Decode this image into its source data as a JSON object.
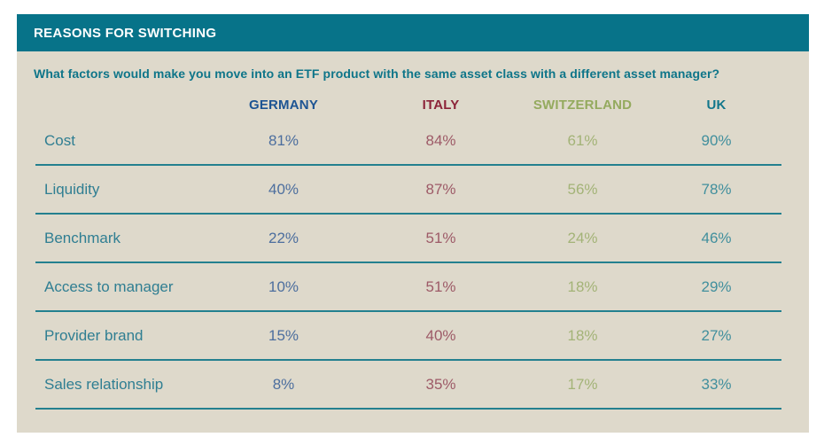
{
  "colors": {
    "page_bg": "#ffffff",
    "panel_bg": "#ded9cb",
    "title_bar_bg": "#077389",
    "title_text": "#ffffff",
    "question_text": "#0e7589",
    "row_label_text": "#2f7e92",
    "row_rule": "#23808f",
    "germany_header": "#1d5493",
    "germany_value": "#4c6e9e",
    "italy_header": "#8c2339",
    "italy_value": "#9d5a67",
    "switzerland_header": "#94aa5e",
    "switzerland_value": "#a3b377",
    "uk_header": "#11768b",
    "uk_value": "#418f9d"
  },
  "chart_data": {
    "type": "table",
    "title": "REASONS FOR SWITCHING",
    "question": "What factors would make you move into an ETF product with the same asset class with a different asset manager?",
    "columns": [
      "GERMANY",
      "ITALY",
      "SWITZERLAND",
      "UK"
    ],
    "values_unit": "%",
    "rows": [
      {
        "label": "Cost",
        "values": [
          "81%",
          "84%",
          "61%",
          "90%"
        ]
      },
      {
        "label": "Liquidity",
        "values": [
          "40%",
          "87%",
          "56%",
          "78%"
        ]
      },
      {
        "label": "Benchmark",
        "values": [
          "22%",
          "51%",
          "24%",
          "46%"
        ]
      },
      {
        "label": "Access to manager",
        "values": [
          "10%",
          "51%",
          "18%",
          "29%"
        ]
      },
      {
        "label": "Provider brand",
        "values": [
          "15%",
          "40%",
          "18%",
          "27%"
        ]
      },
      {
        "label": "Sales relationship",
        "values": [
          "8%",
          "35%",
          "17%",
          "33%"
        ]
      }
    ]
  }
}
